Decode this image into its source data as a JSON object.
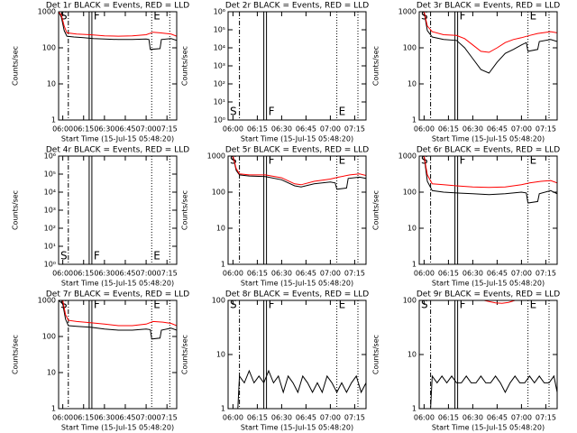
{
  "chart_data": [
    {
      "type": "line",
      "title": "Det 1r BLACK = Events, RED = LLD",
      "ylabel": "Counts/sec",
      "xlabel": "Start Time (15-Jul-15 05:48:20)",
      "log_y": true,
      "ylim": [
        1,
        1000
      ],
      "yticks": [
        1,
        10,
        100,
        1000
      ],
      "xlim": [
        "05:57",
        "07:22"
      ],
      "xticks": [
        "06:00",
        "06:15",
        "06:30",
        "06:45",
        "07:00",
        "07:15"
      ],
      "markers": [
        {
          "label": "S",
          "time": "06:04",
          "style": "dashdot"
        },
        {
          "label": "F",
          "time": "06:19",
          "style": "double"
        },
        {
          "label": "E",
          "time": "07:04",
          "style": "dotted"
        },
        {
          "time": "07:17",
          "style": "dotted"
        }
      ],
      "marker_label_position": "top",
      "series": [
        {
          "name": "Events",
          "color": "#000000",
          "x": [
            "05:57",
            "05:59",
            "06:01",
            "06:03",
            "06:08",
            "06:15",
            "06:22",
            "06:30",
            "06:40",
            "06:50",
            "07:00",
            "07:02",
            "07:03",
            "07:10",
            "07:11",
            "07:18",
            "07:22"
          ],
          "values": [
            1000,
            700,
            300,
            210,
            200,
            190,
            180,
            175,
            170,
            170,
            175,
            170,
            90,
            95,
            170,
            180,
            160
          ]
        },
        {
          "name": "LLD",
          "color": "#ff0000",
          "x": [
            "05:57",
            "05:59",
            "06:01",
            "06:03",
            "06:10",
            "06:20",
            "06:30",
            "06:40",
            "06:50",
            "07:00",
            "07:05",
            "07:10",
            "07:18",
            "07:22"
          ],
          "values": [
            1000,
            800,
            400,
            260,
            240,
            230,
            215,
            210,
            215,
            230,
            270,
            260,
            240,
            210
          ]
        }
      ]
    },
    {
      "type": "line",
      "title": "Det 2r BLACK = Events, RED = LLD",
      "ylabel": "Counts/sec",
      "xlabel": "Start Time (15-Jul-15 05:48:20)",
      "log_y": true,
      "ylim": [
        1,
        1000000
      ],
      "yticks": [
        {
          "value": 1,
          "label": "10⁰"
        },
        {
          "value": 10,
          "label": "10¹"
        },
        {
          "value": 100,
          "label": "10²"
        },
        {
          "value": 1000,
          "label": "10³"
        },
        {
          "value": 10000,
          "label": "10⁴"
        },
        {
          "value": 100000,
          "label": "10⁵"
        },
        {
          "value": 1000000,
          "label": "10⁶"
        }
      ],
      "xlim": [
        "05:57",
        "07:22"
      ],
      "xticks": [
        "06:00",
        "06:15",
        "06:30",
        "06:45",
        "07:00",
        "07:15"
      ],
      "markers": [
        {
          "label": "S",
          "time": "06:04",
          "style": "dashdot"
        },
        {
          "label": "F",
          "time": "06:19",
          "style": "double"
        },
        {
          "label": "E",
          "time": "07:04",
          "style": "dotted"
        },
        {
          "time": "07:17",
          "style": "dotted"
        }
      ],
      "marker_label_position": "bottom",
      "series": []
    },
    {
      "type": "line",
      "title": "Det 3r BLACK = Events, RED = LLD",
      "ylabel": "Counts/sec",
      "xlabel": "Start Time (15-Jul-15 05:48:20)",
      "log_y": true,
      "ylim": [
        1,
        1000
      ],
      "yticks": [
        1,
        10,
        100,
        1000
      ],
      "xlim": [
        "05:57",
        "07:22"
      ],
      "xticks": [
        "06:00",
        "06:15",
        "06:30",
        "06:45",
        "07:00",
        "07:15"
      ],
      "markers": [
        {
          "label": "S",
          "time": "06:04",
          "style": "dashdot"
        },
        {
          "label": "F",
          "time": "06:19",
          "style": "double"
        },
        {
          "label": "E",
          "time": "07:04",
          "style": "dotted"
        },
        {
          "time": "07:17",
          "style": "dotted"
        }
      ],
      "marker_label_position": "top",
      "series": [
        {
          "name": "Events",
          "color": "#000000",
          "x": [
            "05:57",
            "06:00",
            "06:02",
            "06:05",
            "06:12",
            "06:20",
            "06:25",
            "06:30",
            "06:35",
            "06:40",
            "06:45",
            "06:50",
            "06:55",
            "07:00",
            "07:03",
            "07:04",
            "07:10",
            "07:11",
            "07:18",
            "07:22"
          ],
          "values": [
            1000,
            1000,
            300,
            200,
            170,
            160,
            100,
            50,
            25,
            20,
            40,
            70,
            90,
            120,
            140,
            80,
            90,
            150,
            170,
            150
          ]
        },
        {
          "name": "LLD",
          "color": "#ff0000",
          "x": [
            "05:57",
            "06:00",
            "06:02",
            "06:05",
            "06:12",
            "06:20",
            "06:25",
            "06:30",
            "06:35",
            "06:40",
            "06:45",
            "06:50",
            "06:55",
            "07:00",
            "07:05",
            "07:10",
            "07:18",
            "07:22"
          ],
          "values": [
            1000,
            1000,
            400,
            280,
            230,
            220,
            180,
            120,
            80,
            75,
            100,
            140,
            170,
            190,
            220,
            250,
            280,
            260
          ]
        }
      ]
    },
    {
      "type": "line",
      "title": "Det 4r BLACK = Events, RED = LLD",
      "ylabel": "Counts/sec",
      "xlabel": "Start Time (15-Jul-15 05:48:20)",
      "log_y": true,
      "ylim": [
        1,
        1000000
      ],
      "yticks": [
        {
          "value": 1,
          "label": "10⁰"
        },
        {
          "value": 10,
          "label": "10¹"
        },
        {
          "value": 100,
          "label": "10²"
        },
        {
          "value": 1000,
          "label": "10³"
        },
        {
          "value": 10000,
          "label": "10⁴"
        },
        {
          "value": 100000,
          "label": "10⁵"
        },
        {
          "value": 1000000,
          "label": "10⁶"
        }
      ],
      "xlim": [
        "05:57",
        "07:22"
      ],
      "xticks": [
        "06:00",
        "06:15",
        "06:30",
        "06:45",
        "07:00",
        "07:15"
      ],
      "markers": [
        {
          "label": "S",
          "time": "06:04",
          "style": "dashdot"
        },
        {
          "label": "F",
          "time": "06:19",
          "style": "double"
        },
        {
          "label": "E",
          "time": "07:04",
          "style": "dotted"
        },
        {
          "time": "07:17",
          "style": "dotted"
        }
      ],
      "marker_label_position": "bottom",
      "series": []
    },
    {
      "type": "line",
      "title": "Det 5r BLACK = Events, RED = LLD",
      "ylabel": "Counts/sec",
      "xlabel": "Start Time (15-Jul-15 05:48:20)",
      "log_y": true,
      "ylim": [
        1,
        1000
      ],
      "yticks": [
        1,
        10,
        100,
        1000
      ],
      "xlim": [
        "05:57",
        "07:22"
      ],
      "xticks": [
        "06:00",
        "06:15",
        "06:30",
        "06:45",
        "07:00",
        "07:15"
      ],
      "markers": [
        {
          "label": "S",
          "time": "06:04",
          "style": "dashdot"
        },
        {
          "label": "F",
          "time": "06:19",
          "style": "double"
        },
        {
          "label": "E",
          "time": "07:04",
          "style": "dotted"
        },
        {
          "time": "07:17",
          "style": "dotted"
        }
      ],
      "marker_label_position": "top",
      "series": [
        {
          "name": "Events",
          "color": "#000000",
          "x": [
            "05:57",
            "06:00",
            "06:02",
            "06:04",
            "06:10",
            "06:20",
            "06:30",
            "06:38",
            "06:42",
            "06:50",
            "07:00",
            "07:03",
            "07:04",
            "07:10",
            "07:11",
            "07:18",
            "07:22"
          ],
          "values": [
            1000,
            1000,
            400,
            300,
            280,
            270,
            220,
            150,
            140,
            170,
            190,
            180,
            120,
            130,
            240,
            260,
            240
          ]
        },
        {
          "name": "LLD",
          "color": "#ff0000",
          "x": [
            "05:57",
            "06:00",
            "06:02",
            "06:04",
            "06:10",
            "06:20",
            "06:30",
            "06:38",
            "06:42",
            "06:50",
            "07:00",
            "07:05",
            "07:12",
            "07:18",
            "07:22"
          ],
          "values": [
            1000,
            1000,
            450,
            320,
            300,
            300,
            250,
            170,
            160,
            200,
            230,
            260,
            300,
            320,
            290
          ]
        }
      ]
    },
    {
      "type": "line",
      "title": "Det 6r BLACK = Events, RED = LLD",
      "ylabel": "Counts/sec",
      "xlabel": "Start Time (15-Jul-15 05:48:20)",
      "log_y": true,
      "ylim": [
        1,
        1000
      ],
      "yticks": [
        1,
        10,
        100,
        1000
      ],
      "xlim": [
        "05:57",
        "07:22"
      ],
      "xticks": [
        "06:00",
        "06:15",
        "06:30",
        "06:45",
        "07:00",
        "07:15"
      ],
      "markers": [
        {
          "label": "S",
          "time": "06:04",
          "style": "dashdot"
        },
        {
          "label": "F",
          "time": "06:19",
          "style": "double"
        },
        {
          "label": "E",
          "time": "07:04",
          "style": "dotted"
        },
        {
          "time": "07:17",
          "style": "dotted"
        }
      ],
      "marker_label_position": "top",
      "series": [
        {
          "name": "Events",
          "color": "#000000",
          "x": [
            "05:57",
            "06:00",
            "06:02",
            "06:05",
            "06:12",
            "06:20",
            "06:30",
            "06:40",
            "06:50",
            "07:00",
            "07:03",
            "07:04",
            "07:10",
            "07:11",
            "07:18",
            "07:22"
          ],
          "values": [
            1000,
            1000,
            200,
            110,
            100,
            95,
            90,
            85,
            90,
            100,
            95,
            50,
            55,
            90,
            110,
            90
          ]
        },
        {
          "name": "LLD",
          "color": "#ff0000",
          "x": [
            "05:57",
            "06:00",
            "06:02",
            "06:05",
            "06:12",
            "06:20",
            "06:30",
            "06:40",
            "06:50",
            "07:00",
            "07:05",
            "07:12",
            "07:18",
            "07:22"
          ],
          "values": [
            1000,
            1000,
            300,
            170,
            160,
            150,
            140,
            135,
            140,
            160,
            180,
            200,
            210,
            180
          ]
        }
      ]
    },
    {
      "type": "line",
      "title": "Det 7r BLACK = Events, RED = LLD",
      "ylabel": "Counts/sec",
      "xlabel": "Start Time (15-Jul-15 05:48:20)",
      "log_y": true,
      "ylim": [
        1,
        1000
      ],
      "yticks": [
        1,
        10,
        100,
        1000
      ],
      "xlim": [
        "05:57",
        "07:22"
      ],
      "xticks": [
        "06:00",
        "06:15",
        "06:30",
        "06:45",
        "07:00",
        "07:15"
      ],
      "markers": [
        {
          "label": "S",
          "time": "06:04",
          "style": "dashdot"
        },
        {
          "label": "F",
          "time": "06:19",
          "style": "double"
        },
        {
          "label": "E",
          "time": "07:04",
          "style": "dotted"
        },
        {
          "time": "07:17",
          "style": "dotted"
        }
      ],
      "marker_label_position": "top",
      "series": [
        {
          "name": "Events",
          "color": "#000000",
          "x": [
            "05:57",
            "06:00",
            "06:02",
            "06:04",
            "06:10",
            "06:20",
            "06:30",
            "06:40",
            "06:50",
            "07:00",
            "07:03",
            "07:04",
            "07:10",
            "07:11",
            "07:18",
            "07:22"
          ],
          "values": [
            1000,
            800,
            300,
            200,
            190,
            180,
            160,
            150,
            150,
            160,
            155,
            85,
            90,
            150,
            170,
            150
          ]
        },
        {
          "name": "LLD",
          "color": "#ff0000",
          "x": [
            "05:57",
            "06:00",
            "06:02",
            "06:04",
            "06:10",
            "06:20",
            "06:30",
            "06:40",
            "06:50",
            "07:00",
            "07:05",
            "07:12",
            "07:18",
            "07:22"
          ],
          "values": [
            1000,
            1000,
            400,
            280,
            260,
            240,
            220,
            200,
            200,
            220,
            260,
            250,
            230,
            200
          ]
        }
      ]
    },
    {
      "type": "line",
      "title": "Det 8r BLACK = Events, RED = LLD",
      "ylabel": "Counts/sec",
      "xlabel": "Start Time (15-Jul-15 05:48:20)",
      "log_y": true,
      "ylim": [
        1,
        100
      ],
      "yticks": [
        1,
        10,
        100
      ],
      "xlim": [
        "05:57",
        "07:22"
      ],
      "xticks": [
        "06:00",
        "06:15",
        "06:30",
        "06:45",
        "07:00",
        "07:15"
      ],
      "markers": [
        {
          "label": "S",
          "time": "06:04",
          "style": "dashdot"
        },
        {
          "label": "F",
          "time": "06:19",
          "style": "double"
        },
        {
          "label": "E",
          "time": "07:04",
          "style": "dotted"
        },
        {
          "time": "07:17",
          "style": "dotted"
        }
      ],
      "marker_label_position": "top",
      "series": [
        {
          "name": "Events",
          "color": "#000000",
          "x": [
            "06:03",
            "06:04",
            "06:07",
            "06:10",
            "06:13",
            "06:16",
            "06:19",
            "06:22",
            "06:25",
            "06:28",
            "06:31",
            "06:34",
            "06:37",
            "06:40",
            "06:43",
            "06:46",
            "06:49",
            "06:52",
            "06:55",
            "06:58",
            "07:01",
            "07:04",
            "07:07",
            "07:10",
            "07:13",
            "07:16",
            "07:19",
            "07:22"
          ],
          "values": [
            1,
            4,
            3,
            5,
            3,
            4,
            3,
            5,
            3,
            4,
            2,
            4,
            3,
            2,
            4,
            3,
            2,
            3,
            2,
            4,
            3,
            2,
            3,
            2,
            3,
            4,
            2,
            3
          ]
        }
      ]
    },
    {
      "type": "line",
      "title": "Det 9r BLACK = Events, RED = LLD",
      "ylabel": "Counts/sec",
      "xlabel": "Start Time (15-Jul-15 05:48:20)",
      "log_y": true,
      "ylim": [
        1,
        100
      ],
      "yticks": [
        1,
        10,
        100
      ],
      "xlim": [
        "05:57",
        "07:22"
      ],
      "xticks": [
        "06:00",
        "06:15",
        "06:30",
        "06:45",
        "07:00",
        "07:15"
      ],
      "markers": [
        {
          "label": "S",
          "time": "06:04",
          "style": "dashdot"
        },
        {
          "label": "F",
          "time": "06:19",
          "style": "double"
        },
        {
          "label": "E",
          "time": "07:04",
          "style": "dotted"
        },
        {
          "time": "07:17",
          "style": "dotted"
        }
      ],
      "marker_label_position": "top",
      "series": [
        {
          "name": "Events",
          "color": "#000000",
          "x": [
            "06:04",
            "06:05",
            "06:08",
            "06:11",
            "06:14",
            "06:17",
            "06:20",
            "06:23",
            "06:26",
            "06:29",
            "06:32",
            "06:35",
            "06:38",
            "06:41",
            "06:44",
            "06:47",
            "06:50",
            "06:53",
            "06:56",
            "06:59",
            "07:02",
            "07:05",
            "07:08",
            "07:11",
            "07:14",
            "07:17",
            "07:20",
            "07:22"
          ],
          "values": [
            1,
            4,
            3,
            4,
            3,
            4,
            3,
            3,
            4,
            3,
            3,
            4,
            3,
            3,
            4,
            3,
            2,
            3,
            4,
            3,
            3,
            4,
            3,
            4,
            3,
            3,
            4,
            2
          ]
        },
        {
          "name": "LLD",
          "color": "#ff0000",
          "x": [
            "06:37",
            "06:40",
            "06:44",
            "06:48",
            "06:52",
            "06:56"
          ],
          "values": [
            100,
            95,
            90,
            88,
            92,
            100
          ]
        }
      ]
    }
  ]
}
